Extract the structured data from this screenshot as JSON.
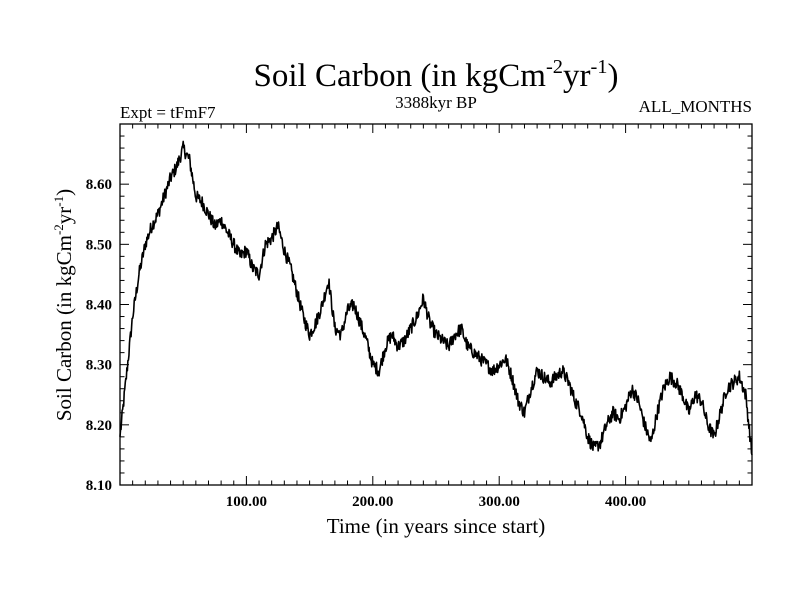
{
  "chart_data": {
    "type": "line",
    "title": {
      "main": "Soil Carbon (in kgCm",
      "sup1": "-2",
      "mid": "yr",
      "sup2": "-1",
      "end": ")"
    },
    "subtitle_left": "Expt = tFmF7",
    "subtitle_center": "3388kyr BP",
    "subtitle_right": "ALL_MONTHS",
    "xlabel": "Time (in years since start)",
    "ylabel": {
      "main": "Soil Carbon (in kgCm",
      "sup1": "-2",
      "mid": "yr",
      "sup2": "-1",
      "end": ")"
    },
    "xlim": [
      0,
      500
    ],
    "ylim": [
      8.1,
      8.7
    ],
    "xticks": [
      {
        "value": 100,
        "label": "100.00"
      },
      {
        "value": 200,
        "label": "200.00"
      },
      {
        "value": 300,
        "label": "300.00"
      },
      {
        "value": 400,
        "label": "400.00"
      }
    ],
    "yticks": [
      {
        "value": 8.1,
        "label": "8.10"
      },
      {
        "value": 8.2,
        "label": "8.20"
      },
      {
        "value": 8.3,
        "label": "8.30"
      },
      {
        "value": 8.4,
        "label": "8.40"
      },
      {
        "value": 8.5,
        "label": "8.50"
      },
      {
        "value": 8.6,
        "label": "8.60"
      }
    ],
    "series": [
      {
        "name": "Soil Carbon",
        "color": "#000000",
        "x": [
          0,
          5,
          10,
          15,
          20,
          25,
          30,
          35,
          40,
          45,
          50,
          55,
          60,
          65,
          70,
          75,
          80,
          85,
          90,
          95,
          100,
          105,
          110,
          115,
          120,
          125,
          130,
          135,
          140,
          145,
          150,
          155,
          160,
          165,
          170,
          175,
          180,
          185,
          190,
          195,
          200,
          205,
          210,
          215,
          220,
          225,
          230,
          235,
          240,
          245,
          250,
          255,
          260,
          265,
          270,
          275,
          280,
          285,
          290,
          295,
          300,
          305,
          310,
          315,
          320,
          325,
          330,
          335,
          340,
          345,
          350,
          355,
          360,
          365,
          370,
          375,
          380,
          385,
          390,
          395,
          400,
          405,
          410,
          415,
          420,
          425,
          430,
          435,
          440,
          445,
          450,
          455,
          460,
          465,
          470,
          475,
          480,
          485,
          490,
          495,
          500
        ],
        "y": [
          8.18,
          8.28,
          8.38,
          8.45,
          8.5,
          8.53,
          8.55,
          8.58,
          8.61,
          8.63,
          8.66,
          8.64,
          8.58,
          8.57,
          8.55,
          8.53,
          8.54,
          8.52,
          8.5,
          8.48,
          8.49,
          8.46,
          8.45,
          8.5,
          8.51,
          8.53,
          8.49,
          8.46,
          8.42,
          8.38,
          8.35,
          8.37,
          8.4,
          8.44,
          8.36,
          8.35,
          8.39,
          8.4,
          8.37,
          8.34,
          8.3,
          8.29,
          8.33,
          8.35,
          8.33,
          8.34,
          8.36,
          8.38,
          8.41,
          8.37,
          8.35,
          8.34,
          8.33,
          8.35,
          8.36,
          8.33,
          8.32,
          8.31,
          8.3,
          8.29,
          8.3,
          8.31,
          8.28,
          8.24,
          8.22,
          8.26,
          8.29,
          8.28,
          8.27,
          8.28,
          8.29,
          8.27,
          8.24,
          8.22,
          8.18,
          8.16,
          8.17,
          8.2,
          8.22,
          8.21,
          8.23,
          8.26,
          8.24,
          8.2,
          8.17,
          8.22,
          8.26,
          8.28,
          8.27,
          8.25,
          8.22,
          8.25,
          8.24,
          8.2,
          8.18,
          8.22,
          8.26,
          8.27,
          8.28,
          8.25,
          8.15
        ]
      }
    ]
  }
}
